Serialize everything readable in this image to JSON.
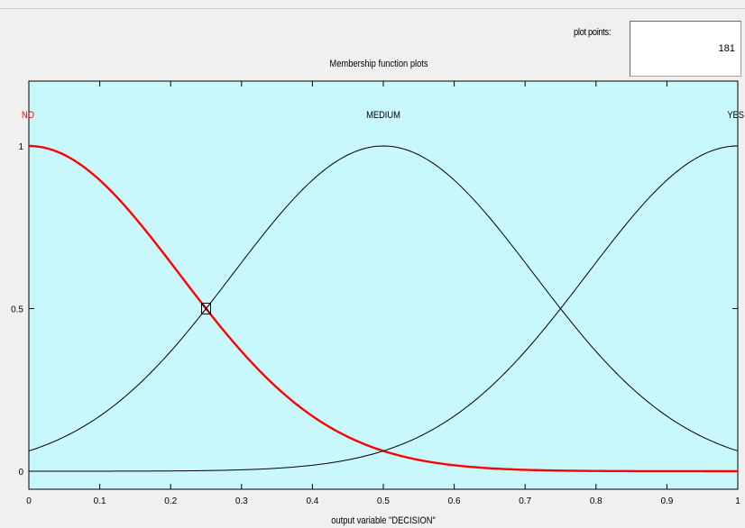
{
  "plot_points": {
    "label": "plot points:",
    "value": "181"
  },
  "plot": {
    "title": "Membership function plots",
    "xlabel": "output variable \"DECISION\"",
    "background_color": "#c8f8fb",
    "selected_color": "#ff0000",
    "curve_color": "#000000"
  },
  "chart_data": {
    "type": "line",
    "title": "Membership function plots",
    "xlabel": "output variable \"DECISION\"",
    "ylabel": "",
    "xlim": [
      0,
      1
    ],
    "ylim": [
      0,
      1
    ],
    "x_ticks": [
      "0",
      "0.1",
      "0.2",
      "0.3",
      "0.4",
      "0.5",
      "0.6",
      "0.7",
      "0.8",
      "0.9",
      "1"
    ],
    "y_ticks": [
      "0",
      "0.5",
      "1"
    ],
    "grid": false,
    "series": [
      {
        "name": "NO",
        "center": 0,
        "sigma": 0.2123,
        "selected": true
      },
      {
        "name": "MEDIUM",
        "center": 0.5,
        "sigma": 0.2123,
        "selected": false
      },
      {
        "name": "YES",
        "center": 1,
        "sigma": 0.2123,
        "selected": false
      }
    ],
    "selected_point": {
      "x": 0.25,
      "y": 0.5
    }
  }
}
